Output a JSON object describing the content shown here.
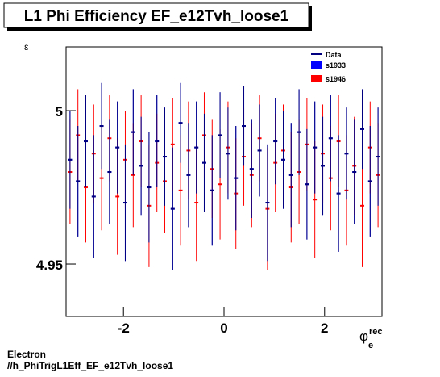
{
  "chart_data": {
    "type": "errorbar",
    "title": "L1 Phi Efficiency EF_e12Tvh_loose1",
    "y_label": "ε",
    "x_label": "φ",
    "x_label_sub": "e",
    "x_label_sup": "rec",
    "footer": [
      "Electron",
      "//h_PhiTrigL1Eff_EF_e12Tvh_loose1"
    ],
    "xlim": [
      -3.1416,
      3.1416
    ],
    "ylim": [
      4.9329,
      5.0208
    ],
    "xticks": [
      -2,
      0,
      2
    ],
    "yticks": [
      4.95,
      5
    ],
    "x": [
      -3.063,
      -2.906,
      -2.749,
      -2.592,
      -2.435,
      -2.278,
      -2.121,
      -1.964,
      -1.806,
      -1.649,
      -1.492,
      -1.335,
      -1.178,
      -1.021,
      -0.864,
      -0.707,
      -0.55,
      -0.393,
      -0.236,
      -0.079,
      0.079,
      0.236,
      0.393,
      0.55,
      0.707,
      0.864,
      1.021,
      1.178,
      1.335,
      1.492,
      1.649,
      1.806,
      1.964,
      2.121,
      2.278,
      2.435,
      2.592,
      2.749,
      2.906,
      3.063
    ],
    "series": [
      {
        "name": "Data",
        "color": "#000080",
        "values": [
          4.984,
          4.977,
          4.99,
          4.972,
          4.995,
          4.98,
          4.988,
          4.97,
          4.993,
          4.982,
          4.975,
          4.99,
          4.985,
          4.968,
          4.996,
          4.979,
          4.988,
          4.983,
          4.974,
          4.992,
          4.986,
          4.978,
          4.995,
          4.981,
          4.987,
          4.97,
          4.99,
          4.984,
          4.979,
          4.993,
          4.976,
          4.988,
          4.982,
          4.991,
          4.973,
          4.986,
          4.98,
          4.994,
          4.977,
          4.985
        ],
        "errors": [
          0.016,
          0.018,
          0.015,
          0.02,
          0.014,
          0.017,
          0.015,
          0.019,
          0.014,
          0.016,
          0.018,
          0.015,
          0.016,
          0.02,
          0.013,
          0.017,
          0.015,
          0.016,
          0.018,
          0.014,
          0.015,
          0.017,
          0.013,
          0.016,
          0.015,
          0.019,
          0.014,
          0.016,
          0.017,
          0.014,
          0.018,
          0.015,
          0.016,
          0.014,
          0.019,
          0.015,
          0.017,
          0.013,
          0.018,
          0.016
        ]
      },
      {
        "name": "s1933",
        "color": "#0000ff",
        "values": [
          4.984,
          4.977,
          4.99,
          4.972,
          4.995,
          4.98,
          4.988,
          4.97,
          4.993,
          4.982,
          4.975,
          4.99,
          4.985,
          4.968,
          4.996,
          4.979,
          4.988,
          4.983,
          4.974,
          4.992,
          4.986,
          4.978,
          4.995,
          4.981,
          4.987,
          4.97,
          4.99,
          4.984,
          4.979,
          4.993,
          4.976,
          4.988,
          4.982,
          4.991,
          4.973,
          4.986,
          4.98,
          4.994,
          4.977,
          4.985
        ],
        "errors": [
          0.016,
          0.018,
          0.015,
          0.02,
          0.014,
          0.017,
          0.015,
          0.019,
          0.014,
          0.016,
          0.018,
          0.015,
          0.016,
          0.02,
          0.013,
          0.017,
          0.015,
          0.016,
          0.018,
          0.014,
          0.015,
          0.017,
          0.013,
          0.016,
          0.015,
          0.019,
          0.014,
          0.016,
          0.017,
          0.014,
          0.018,
          0.015,
          0.016,
          0.014,
          0.019,
          0.015,
          0.017,
          0.013,
          0.018,
          0.016
        ]
      },
      {
        "name": "s1946",
        "color": "#ff0000",
        "values": [
          4.98,
          4.992,
          4.975,
          4.986,
          4.978,
          4.991,
          4.972,
          4.984,
          4.979,
          4.99,
          4.969,
          4.983,
          4.977,
          4.989,
          4.974,
          4.987,
          4.97,
          4.992,
          4.981,
          4.976,
          4.988,
          4.973,
          4.985,
          4.979,
          4.991,
          4.968,
          4.983,
          4.987,
          4.975,
          4.98,
          4.989,
          4.971,
          4.986,
          4.978,
          4.99,
          4.974,
          4.982,
          4.969,
          4.988,
          4.979
        ],
        "errors": [
          0.017,
          0.015,
          0.018,
          0.016,
          0.017,
          0.014,
          0.019,
          0.016,
          0.017,
          0.015,
          0.02,
          0.016,
          0.017,
          0.015,
          0.018,
          0.016,
          0.019,
          0.014,
          0.016,
          0.018,
          0.015,
          0.018,
          0.016,
          0.017,
          0.014,
          0.02,
          0.016,
          0.015,
          0.018,
          0.017,
          0.015,
          0.019,
          0.016,
          0.017,
          0.015,
          0.018,
          0.016,
          0.02,
          0.015,
          0.017
        ]
      }
    ]
  }
}
